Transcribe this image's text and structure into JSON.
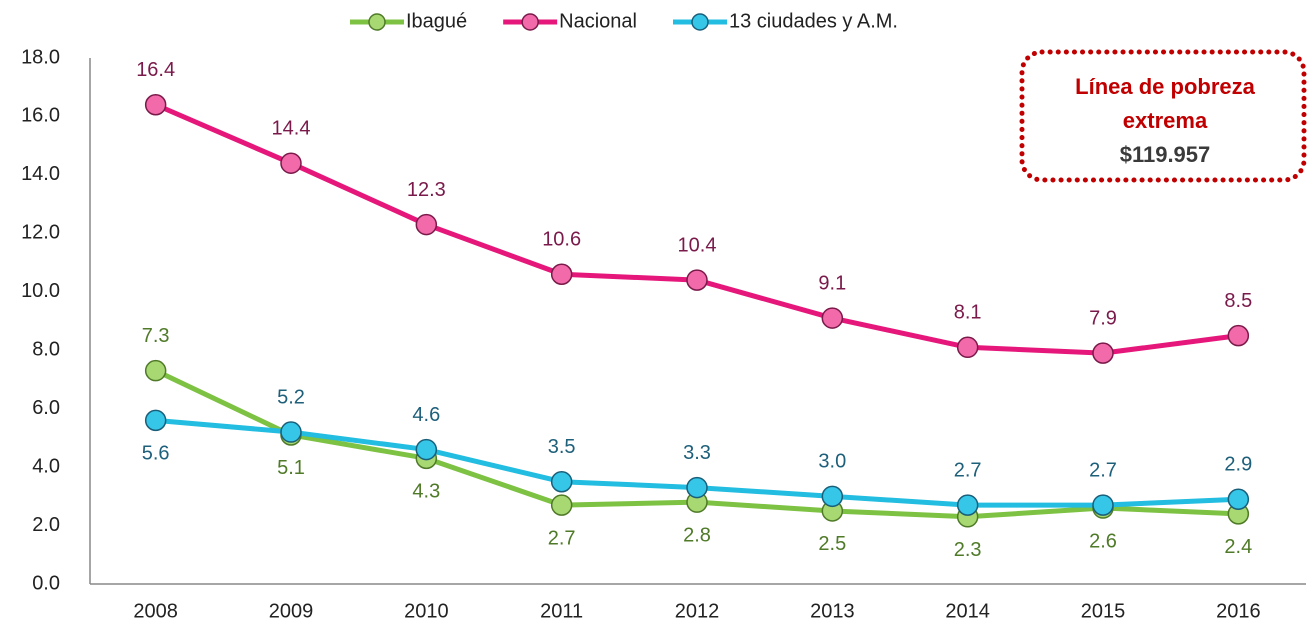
{
  "chart_data": {
    "type": "line",
    "categories": [
      "2008",
      "2009",
      "2010",
      "2011",
      "2012",
      "2013",
      "2014",
      "2015",
      "2016"
    ],
    "series": [
      {
        "name": "Ibagué",
        "color": "#7dc242",
        "values": [
          7.3,
          5.1,
          4.3,
          2.7,
          2.8,
          2.5,
          2.3,
          2.6,
          2.4
        ]
      },
      {
        "name": "Nacional",
        "color": "#e6177a",
        "values": [
          16.4,
          14.4,
          12.3,
          10.6,
          10.4,
          9.1,
          8.1,
          7.9,
          8.5
        ]
      },
      {
        "name": "13 ciudades y A.M.",
        "color": "#22bde0",
        "values": [
          5.6,
          5.2,
          4.6,
          3.5,
          3.3,
          3.0,
          2.7,
          2.7,
          2.9
        ],
        "value_labels": [
          "5.6",
          "5.2",
          "4.6",
          "3.5",
          "3.3",
          "3.0",
          "2.7",
          "2.7",
          "2.9"
        ]
      }
    ],
    "ylim": [
      0,
      18
    ],
    "yticks": [
      {
        "value": 0,
        "label": "0.0"
      },
      {
        "value": 2,
        "label": "2.0"
      },
      {
        "value": 4,
        "label": "4.0"
      },
      {
        "value": 6,
        "label": "6.0"
      },
      {
        "value": 8,
        "label": "8.0"
      },
      {
        "value": 10,
        "label": "10.0"
      },
      {
        "value": 12,
        "label": "12.0"
      },
      {
        "value": 14,
        "label": "14.0"
      },
      {
        "value": 16,
        "label": "16.0"
      },
      {
        "value": 18,
        "label": "18.0"
      }
    ],
    "grid": false,
    "legend": "top",
    "annotation": {
      "text": [
        "Línea de pobreza",
        "extrema"
      ],
      "amount": "$119.957"
    }
  }
}
